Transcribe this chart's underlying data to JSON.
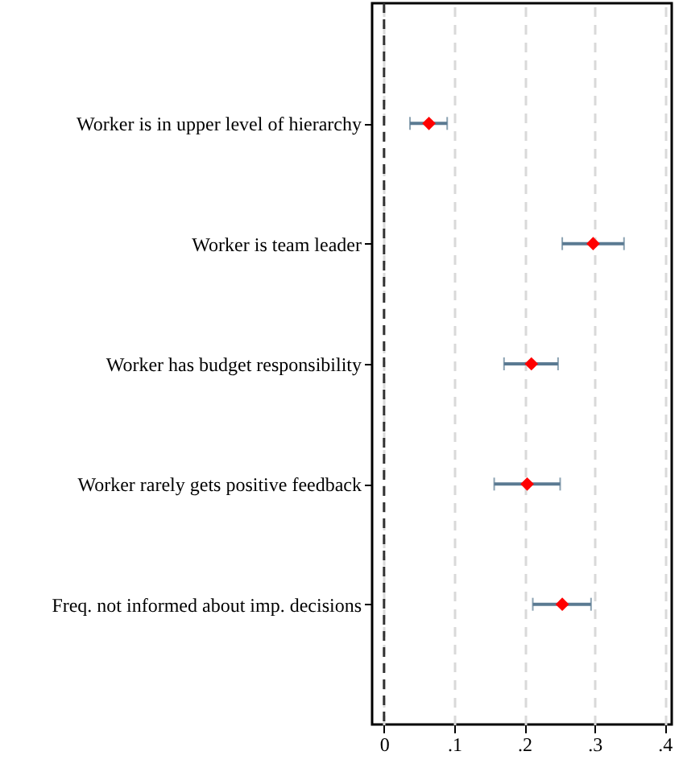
{
  "chart_data": {
    "type": "scatter",
    "orientation": "horizontal",
    "categories": [
      "Worker is in upper level of hierarchy",
      "Worker is team leader",
      "Worker has budget responsibility",
      "Worker rarely gets positive feedback",
      "Freq. not informed about imp. decisions"
    ],
    "series": [
      {
        "color": "#ff0000",
        "values": [
          0.064,
          0.298,
          0.21,
          0.204,
          0.254
        ],
        "errors": [
          [
            0.037,
            0.09
          ],
          [
            0.254,
            0.342
          ],
          [
            0.171,
            0.248
          ],
          [
            0.157,
            0.251
          ],
          [
            0.212,
            0.295
          ]
        ]
      }
    ],
    "xlim": [
      -0.017,
      0.41
    ],
    "xticks": [
      0,
      {
        "value": 0.1,
        "label": ".1"
      },
      {
        "value": 0.2,
        "label": ".2"
      },
      {
        "value": 0.3,
        "label": ".3"
      },
      {
        "value": 0.4,
        "label": ".4"
      }
    ],
    "grid": "x",
    "marker": "diamond",
    "ref_lines": [
      {
        "axis": "x",
        "value": 0,
        "color": "#333333",
        "line_style": "dashed"
      }
    ]
  }
}
